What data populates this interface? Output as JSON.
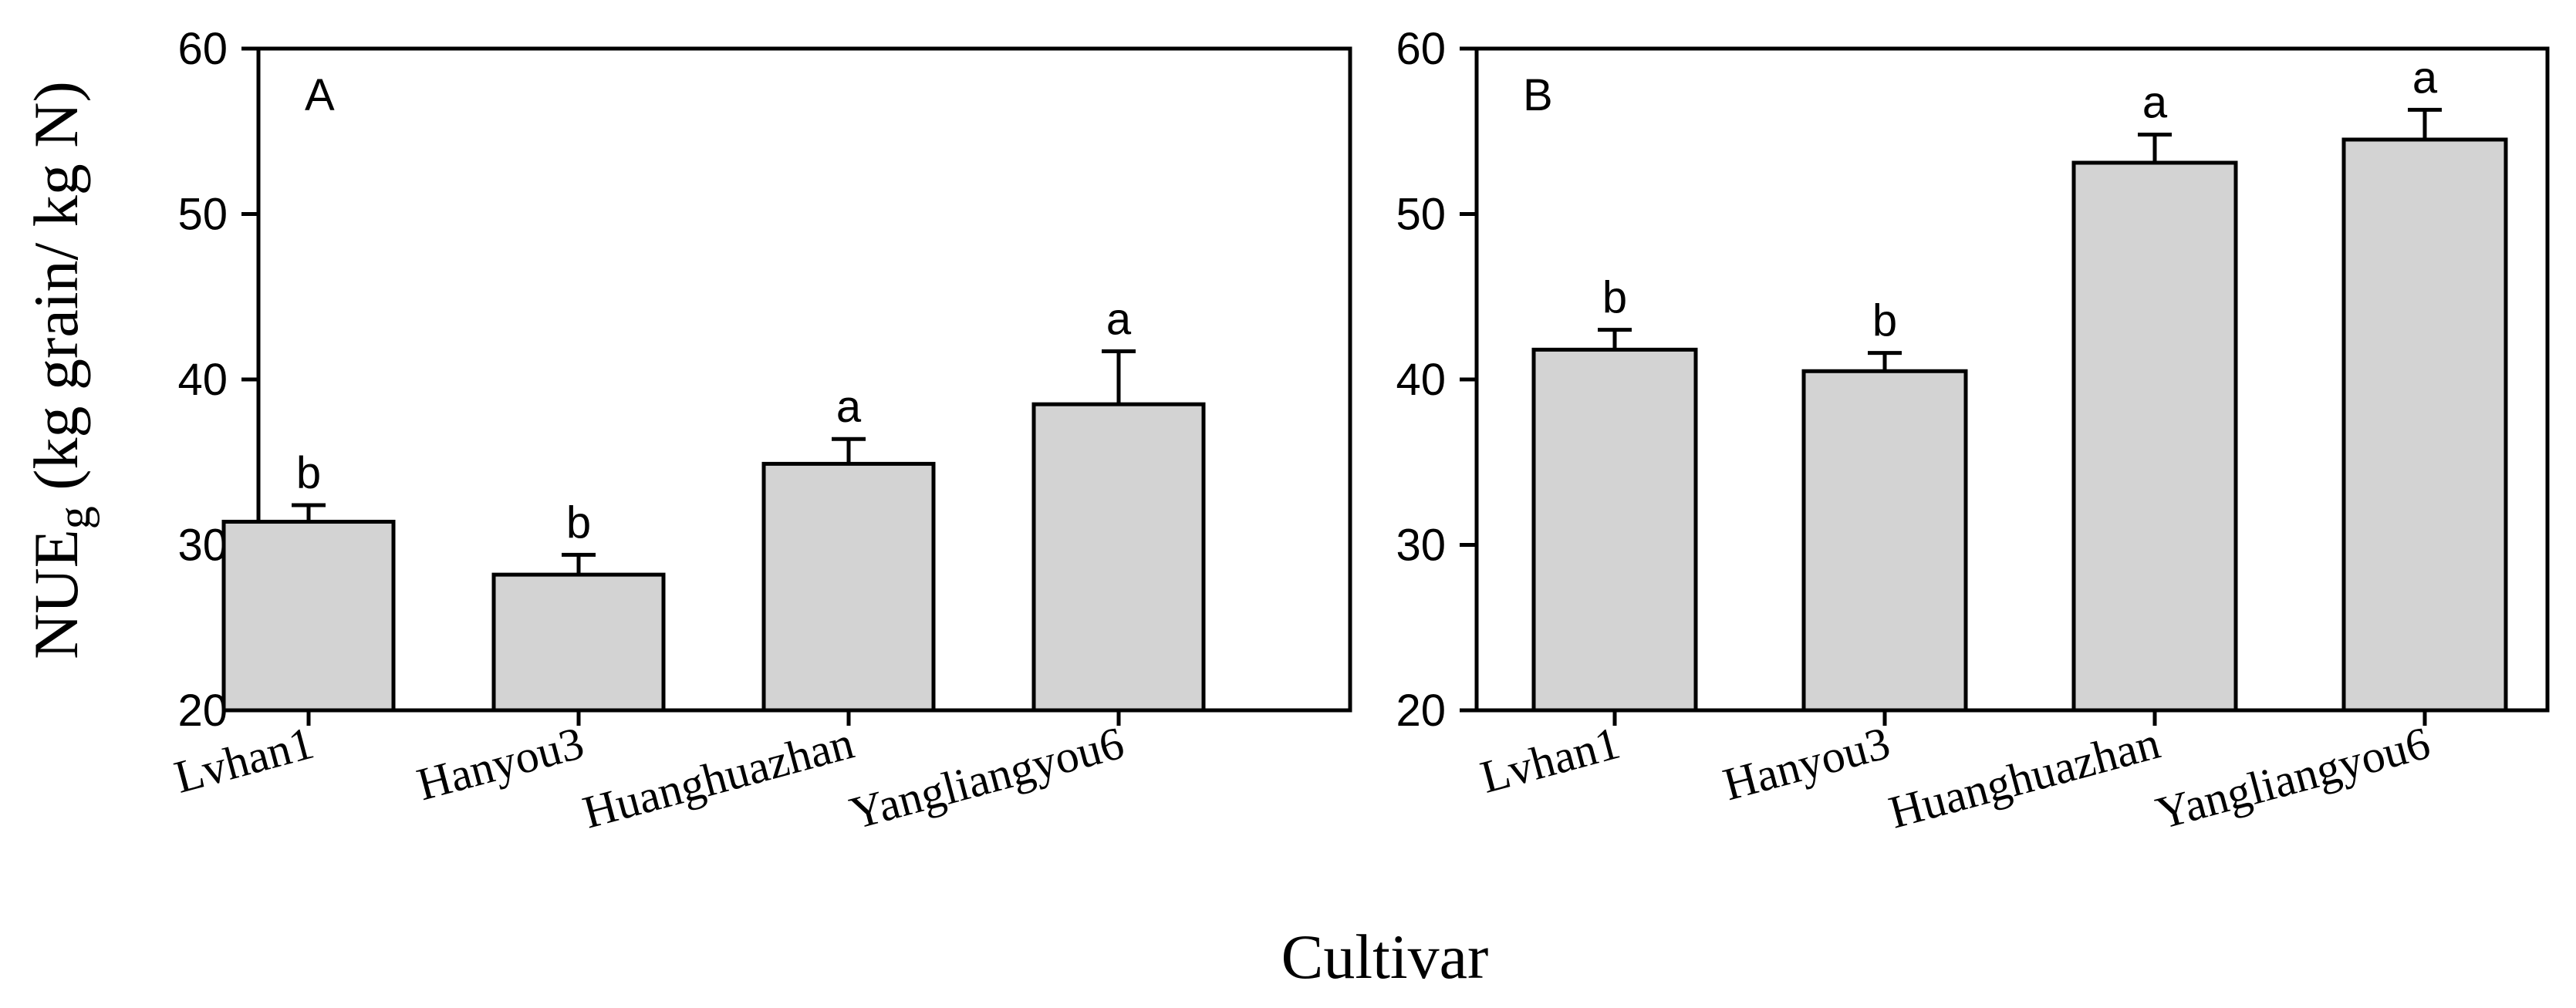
{
  "chart_data": [
    {
      "type": "bar",
      "panel_label": "A",
      "categories": [
        "Lvhan1",
        "Hanyou3",
        "Huanghuazhan",
        "Yangliangyou6"
      ],
      "values": [
        31.4,
        28.2,
        34.9,
        38.5
      ],
      "errors": [
        1.0,
        1.2,
        1.5,
        3.2
      ],
      "significance": [
        "b",
        "b",
        "a",
        "a"
      ],
      "ylim": [
        20,
        60
      ],
      "yticks": [
        "20",
        "30",
        "40",
        "50",
        "60"
      ],
      "bar_color": "#d3d3d3",
      "grid": false
    },
    {
      "type": "bar",
      "panel_label": "B",
      "categories": [
        "Lvhan1",
        "Hanyou3",
        "Huanghuazhan",
        "Yangliangyou6"
      ],
      "values": [
        41.8,
        40.5,
        53.1,
        54.5
      ],
      "errors": [
        1.2,
        1.1,
        1.7,
        1.8
      ],
      "significance": [
        "b",
        "b",
        "a",
        "a"
      ],
      "ylim": [
        20,
        60
      ],
      "yticks": [
        "20",
        "30",
        "40",
        "50",
        "60"
      ],
      "bar_color": "#d3d3d3",
      "grid": false
    }
  ],
  "ylabel_main": "NUE",
  "ylabel_sub": "g",
  "ylabel_rest": " (kg grain/ kg N)",
  "xlabel": "Cultivar"
}
